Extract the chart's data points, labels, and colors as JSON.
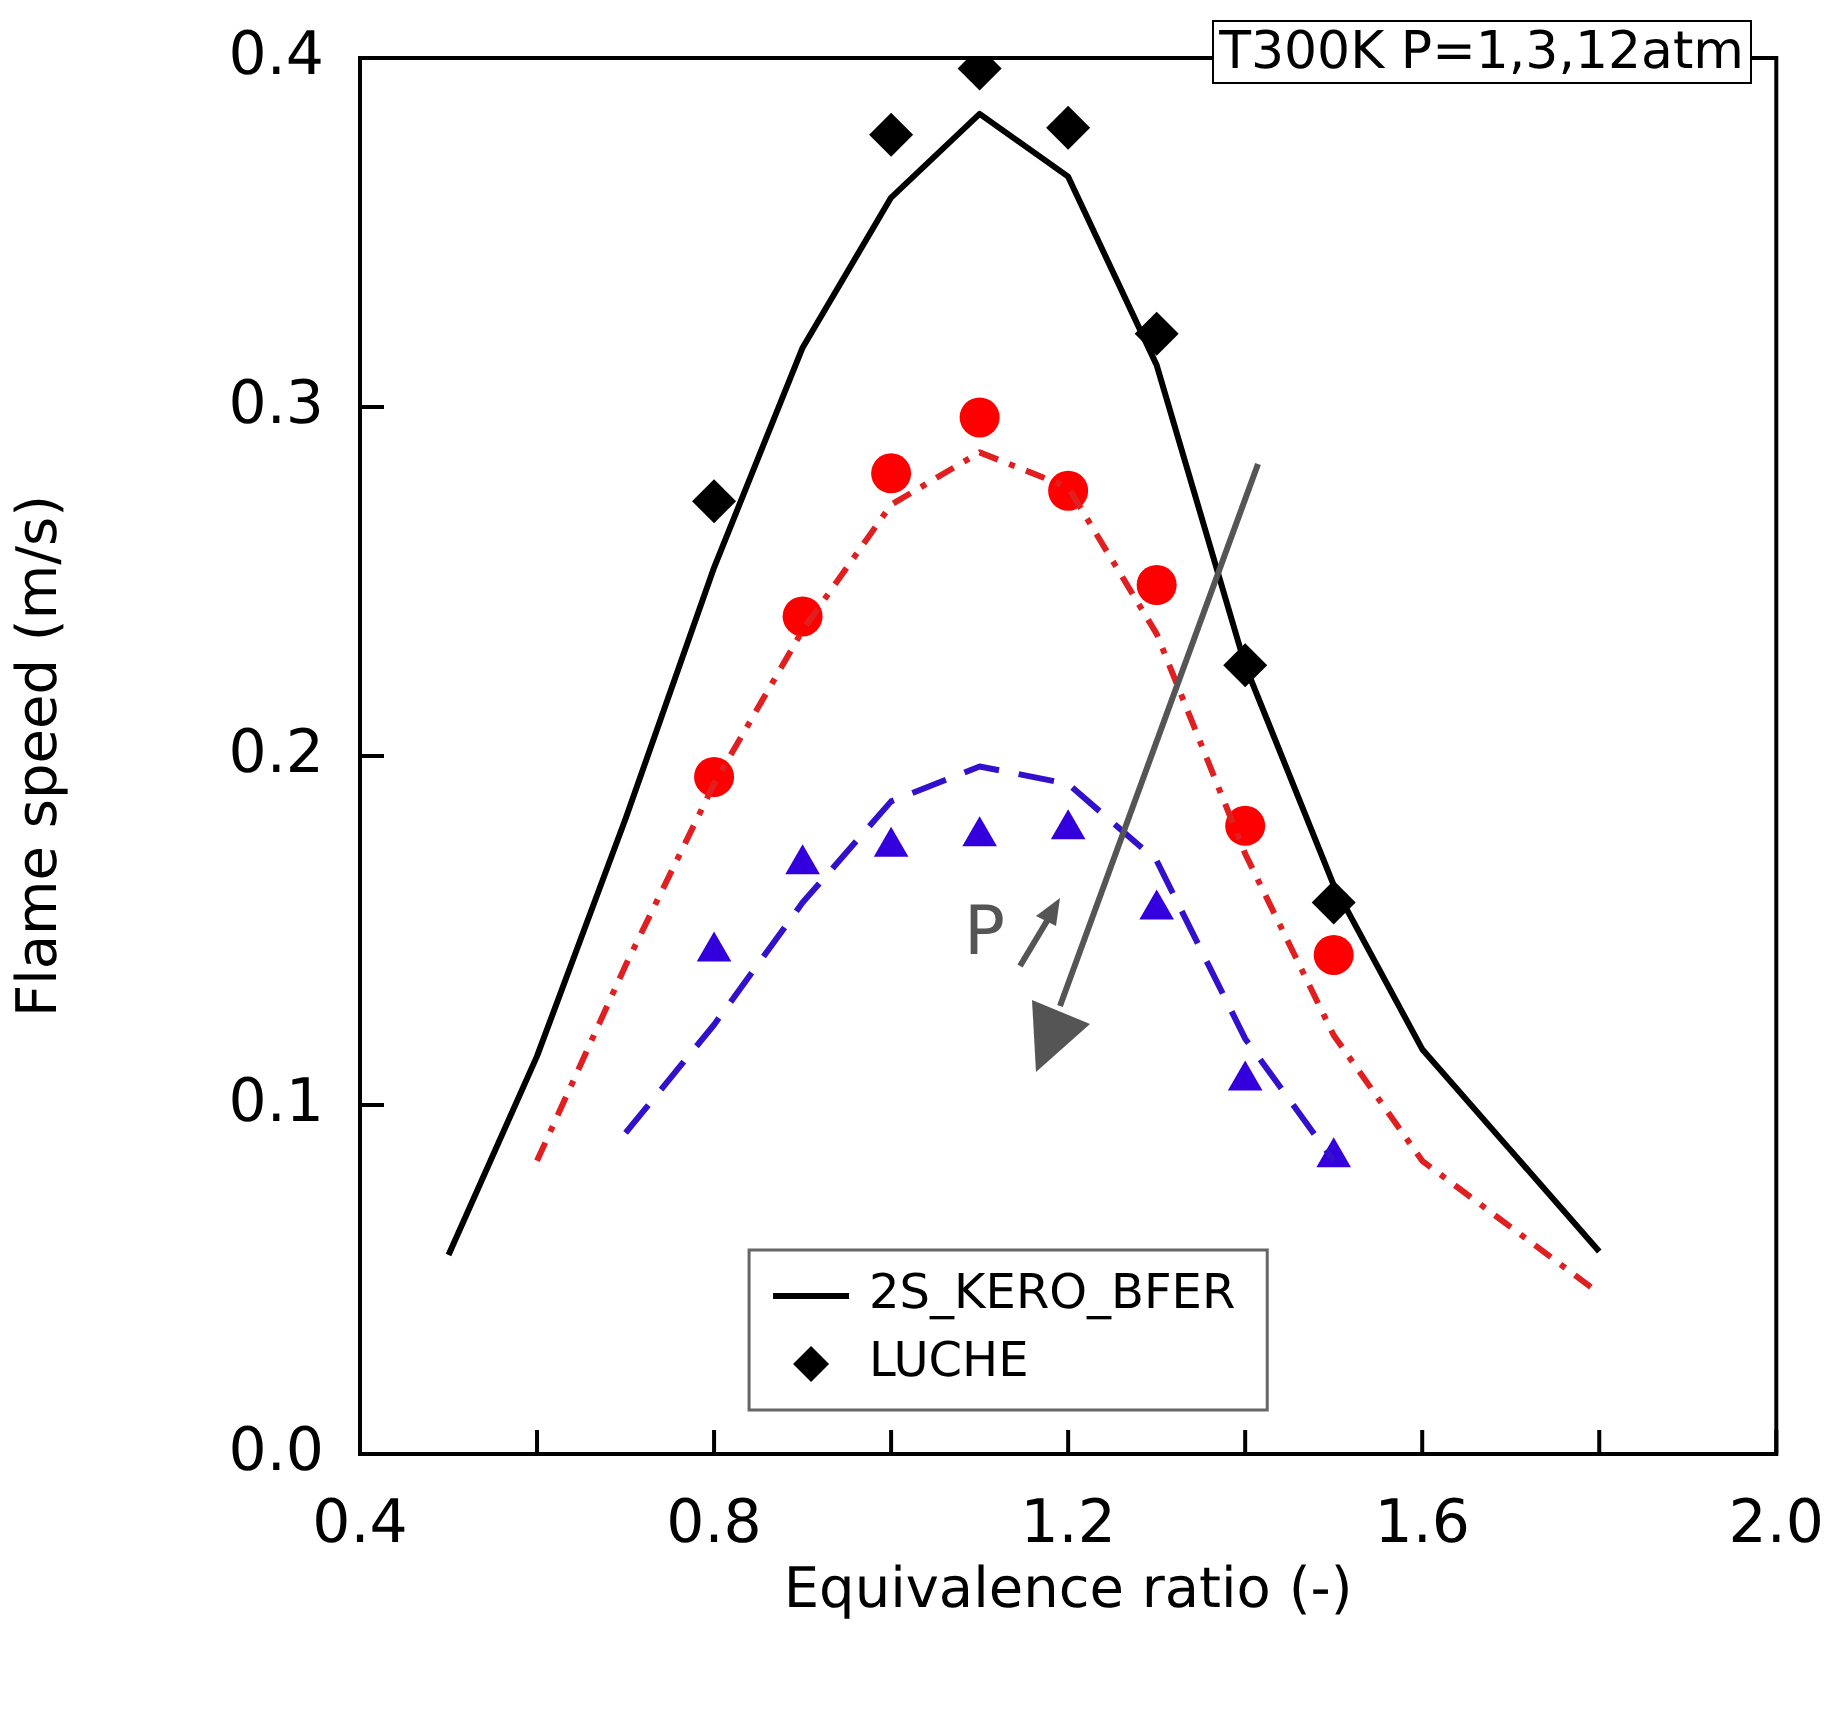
{
  "chart_data": {
    "type": "line",
    "xlabel": "Equivalence ratio (-)",
    "ylabel": "Flame speed (m/s)",
    "xlim": [
      0.4,
      2.0
    ],
    "ylim": [
      0,
      0.4
    ],
    "xticks": [
      0.4,
      {
        "value": 0.6,
        "label": null
      },
      0.8,
      {
        "value": 1.0,
        "label": null
      },
      1.2,
      {
        "value": 1.4,
        "label": null
      },
      1.6,
      {
        "value": 1.8,
        "label": null
      },
      {
        "value": 2.0,
        "label": "2.0"
      }
    ],
    "yticks": [
      {
        "value": 0,
        "label": "0.0"
      },
      0.1,
      0.2,
      0.3,
      0.4
    ],
    "grid": false,
    "legend": "bottom",
    "annotations": [
      "T300K P=1,3,12atm",
      "P"
    ],
    "series": [
      {
        "name": "2S_KERO_BFER",
        "color": "#000000",
        "marker": "none",
        "line_style": "solid",
        "x": [
          0.5,
          0.6,
          0.7,
          0.8,
          0.9,
          1.0,
          1.1,
          1.2,
          1.3,
          1.4,
          1.5,
          1.6,
          1.7,
          1.8
        ],
        "values": [
          0.057,
          0.114,
          0.182,
          0.254,
          0.317,
          0.36,
          0.384,
          0.366,
          0.312,
          0.226,
          0.163,
          0.116,
          0.087,
          0.058
        ]
      },
      {
        "name": "LUCHE",
        "type": "scatter",
        "color": "#000000",
        "marker": "diamond",
        "x": [
          0.8,
          1.0,
          1.1,
          1.2,
          1.3,
          1.4,
          1.5
        ],
        "values": [
          0.273,
          0.378,
          0.397,
          0.38,
          0.321,
          0.226,
          0.158
        ]
      },
      {
        "color": "#e02020",
        "marker": "none",
        "line_style": "dashdot",
        "x": [
          0.6,
          0.7,
          0.8,
          0.9,
          1.0,
          1.1,
          1.2,
          1.3,
          1.4,
          1.5,
          1.6,
          1.7,
          1.8
        ],
        "values": [
          0.084,
          0.14,
          0.192,
          0.236,
          0.272,
          0.287,
          0.277,
          0.235,
          0.172,
          0.12,
          0.084,
          0.065,
          0.046
        ]
      },
      {
        "type": "scatter",
        "color": "#ff0000",
        "marker": "circle",
        "x": [
          0.8,
          0.9,
          1.0,
          1.1,
          1.2,
          1.3,
          1.4,
          1.5
        ],
        "values": [
          0.194,
          0.24,
          0.281,
          0.297,
          0.276,
          0.249,
          0.18,
          0.143
        ]
      },
      {
        "color": "#3311cc",
        "marker": "none",
        "line_style": "dashed",
        "x": [
          0.7,
          0.8,
          0.9,
          1.0,
          1.1,
          1.2,
          1.3,
          1.4,
          1.5
        ],
        "values": [
          0.092,
          0.123,
          0.158,
          0.187,
          0.197,
          0.192,
          0.17,
          0.119,
          0.084
        ]
      },
      {
        "type": "scatter",
        "color": "#3300dd",
        "marker": "triangle",
        "x": [
          0.8,
          0.9,
          1.0,
          1.1,
          1.2,
          1.3,
          1.4,
          1.5
        ],
        "values": [
          0.144,
          0.169,
          0.174,
          0.177,
          0.179,
          0.156,
          0.107,
          0.085
        ]
      }
    ]
  }
}
